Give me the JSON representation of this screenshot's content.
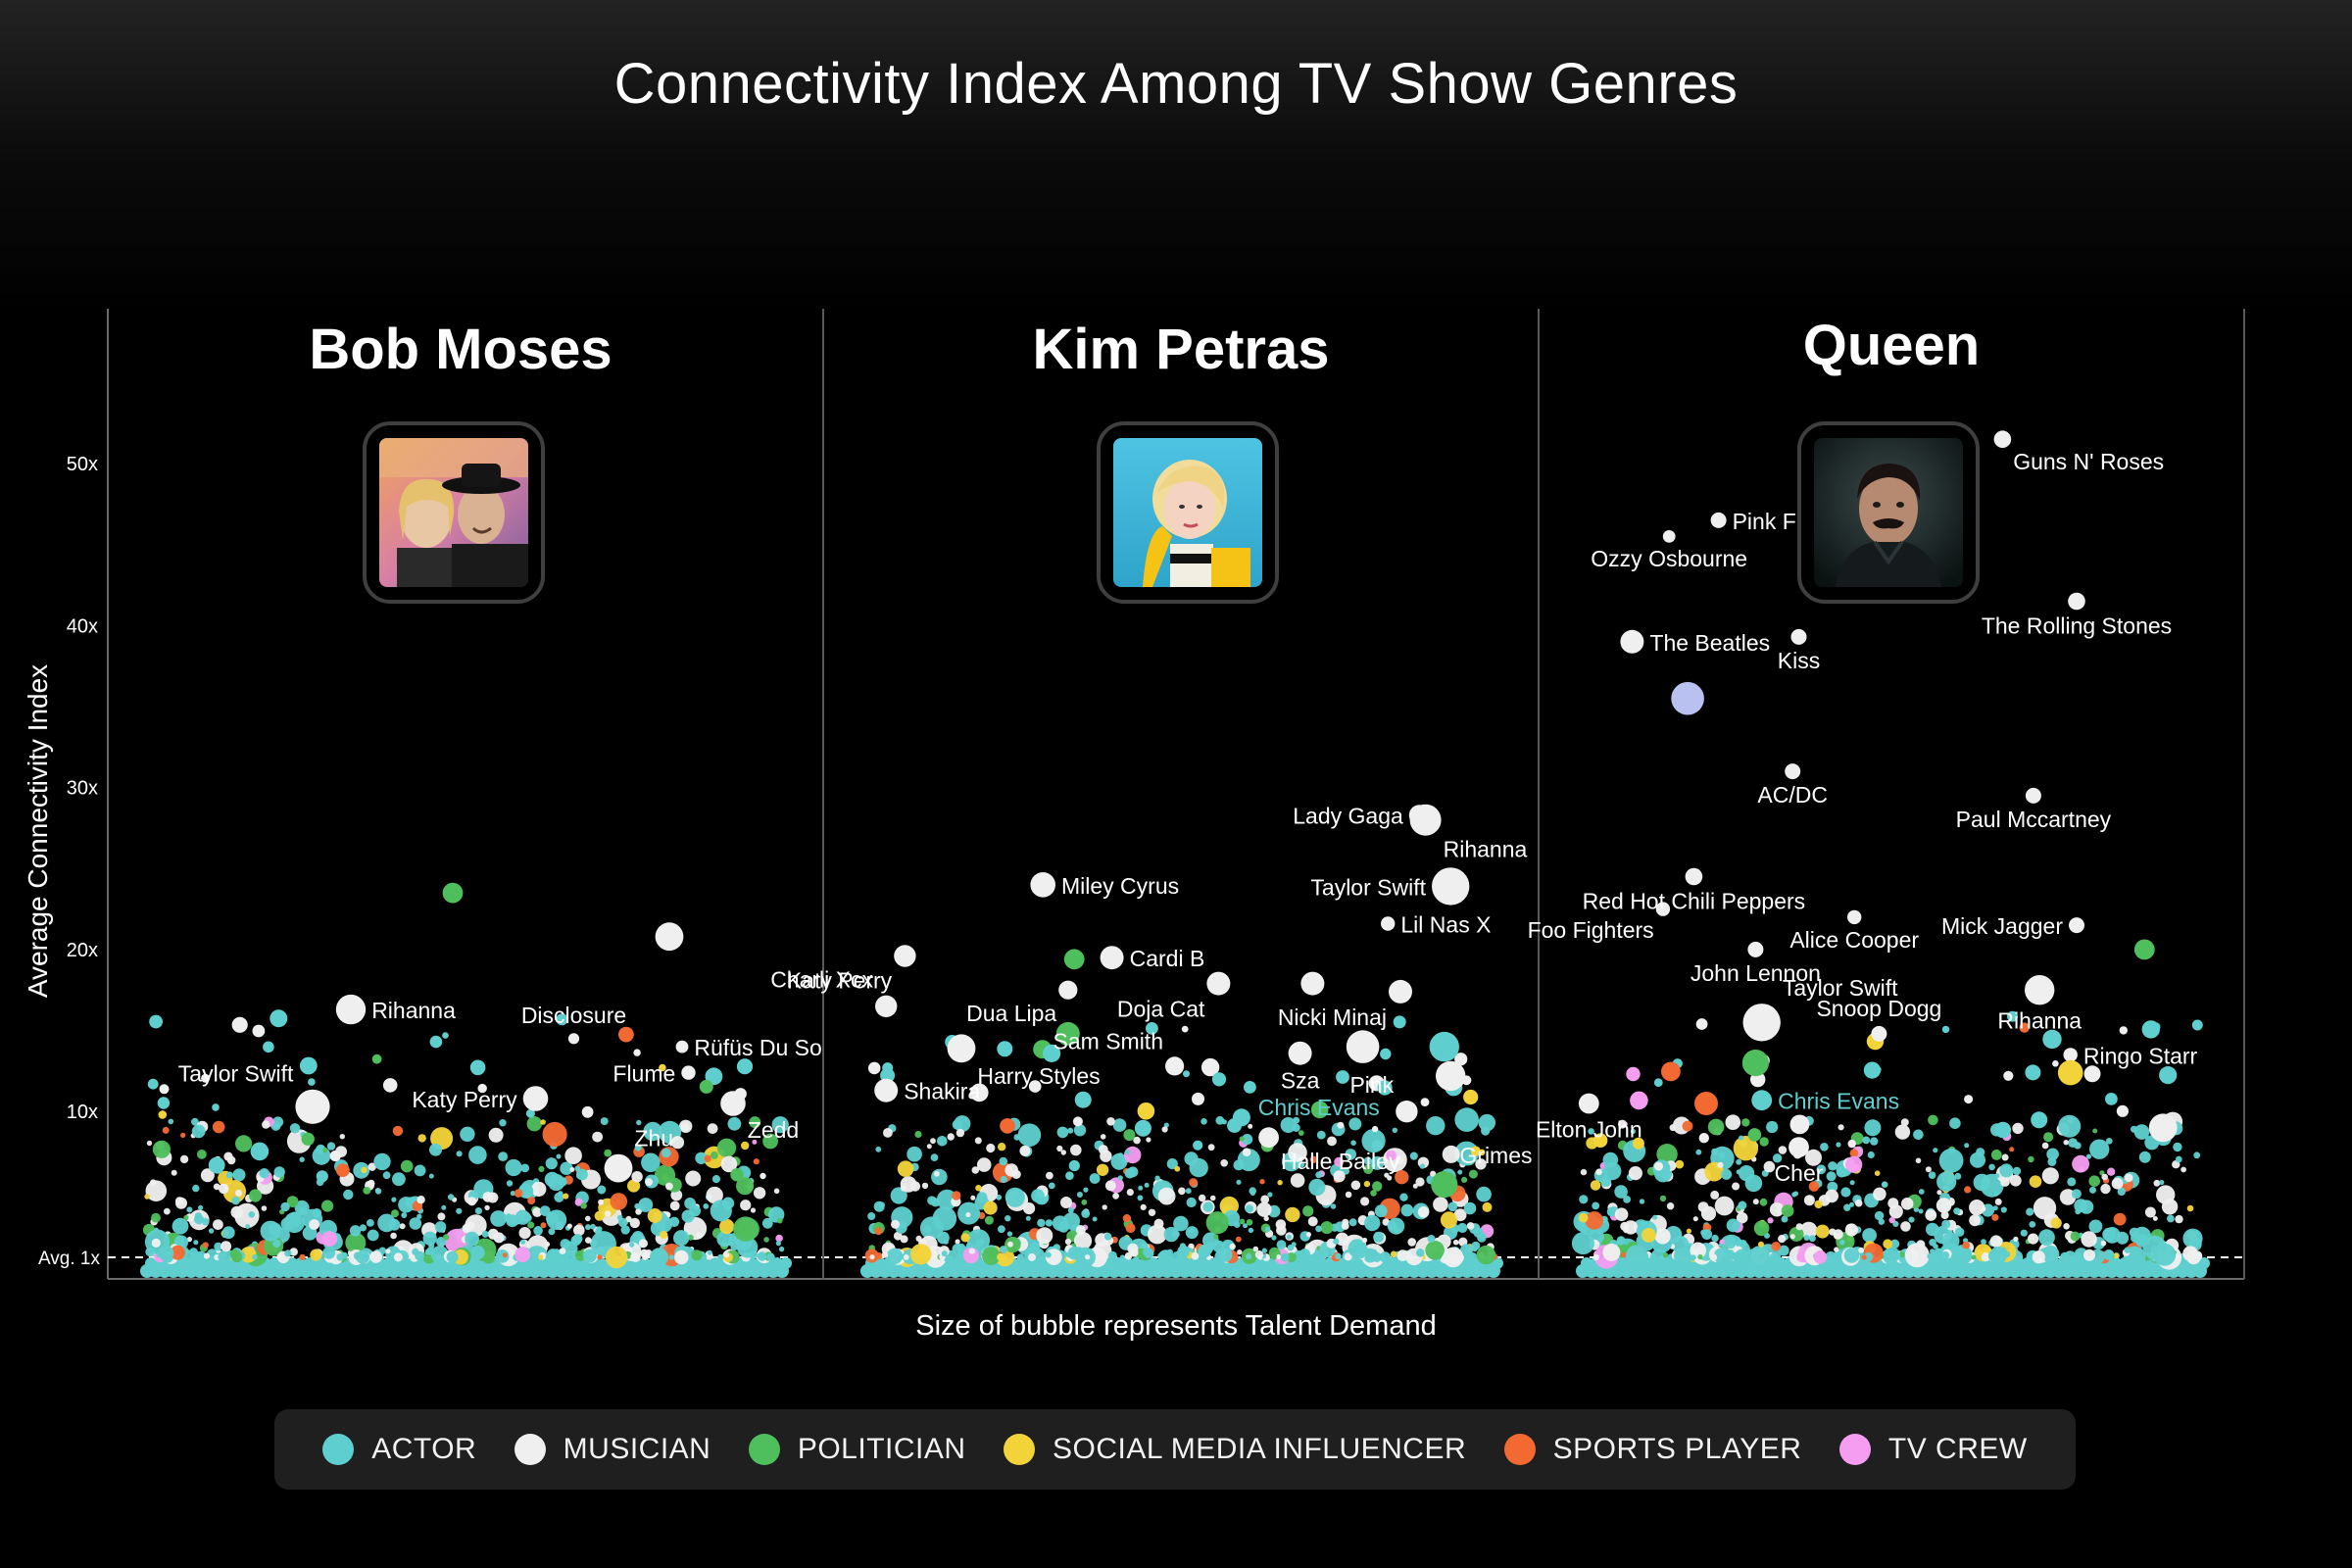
{
  "title": "Connectivity Index Among TV Show Genres",
  "legend": [
    {
      "label": "ACTOR",
      "color": "#5ecfce"
    },
    {
      "label": "MUSICIAN",
      "color": "#efefef"
    },
    {
      "label": "POLITICIAN",
      "color": "#4fbe5c"
    },
    {
      "label": "SOCIAL MEDIA INFLUENCER",
      "color": "#f3d33a"
    },
    {
      "label": "SPORTS PLAYER",
      "color": "#f26a32"
    },
    {
      "label": "TV CREW",
      "color": "#f59df0"
    }
  ],
  "chart_data": {
    "type": "scatter",
    "ylabel": "Average Connectivity Index",
    "xlabel": "Size of bubble represents Talent Demand",
    "y_ticks": [
      {
        "v": 10,
        "label": "10x"
      },
      {
        "v": 20,
        "label": "20x"
      },
      {
        "v": 30,
        "label": "30x"
      },
      {
        "v": 40,
        "label": "40x"
      },
      {
        "v": 50,
        "label": "50x"
      }
    ],
    "avg_line": {
      "v": 1,
      "label": "Avg. 1x"
    },
    "ylim": [
      0,
      56
    ],
    "panels": [
      {
        "name": "Bob Moses",
        "points": [
          {
            "label": "Rihanna",
            "x": 0.32,
            "y": 16.3,
            "t": "musician",
            "s": 1.4,
            "lpos": "r"
          },
          {
            "label": "Taylor Swift",
            "x": 0.26,
            "y": 10.3,
            "t": "musician",
            "s": 1.7,
            "lpos": "tl"
          },
          {
            "label": "Katy Perry",
            "x": 0.61,
            "y": 10.8,
            "t": "musician",
            "s": 1.1,
            "lpos": "l"
          },
          {
            "label": "Disclosure",
            "x": 0.67,
            "y": 14.5,
            "t": "musician",
            "s": 0.2,
            "lpos": "t"
          },
          {
            "label": "Flume",
            "x": 0.85,
            "y": 12.4,
            "t": "musician",
            "s": 0.4,
            "lpos": "l"
          },
          {
            "label": "Rüfüs Du So",
            "x": 0.84,
            "y": 14.0,
            "t": "musician",
            "s": 0.3,
            "lpos": "r"
          },
          {
            "label": "Zedd",
            "x": 0.92,
            "y": 10.5,
            "t": "musician",
            "s": 1.1,
            "lpos": "br"
          },
          {
            "label": "Zhu",
            "x": 0.74,
            "y": 6.5,
            "t": "musician",
            "s": 1.3,
            "lpos": "tr"
          },
          {
            "label": "",
            "x": 0.48,
            "y": 23.5,
            "t": "politician",
            "s": 0.8
          },
          {
            "label": "",
            "x": 0.82,
            "y": 20.8,
            "t": "musician",
            "s": 1.3
          }
        ]
      },
      {
        "name": "Kim Petras",
        "points": [
          {
            "label": "Lady Gaga",
            "x": 0.88,
            "y": 28.3,
            "t": "musician",
            "s": 0.8,
            "lpos": "l"
          },
          {
            "label": "Rihanna",
            "x": 0.89,
            "y": 28.0,
            "t": "musician",
            "s": 1.5,
            "lpos": "br"
          },
          {
            "label": "Taylor Swift",
            "x": 0.93,
            "y": 23.9,
            "t": "musician",
            "s": 1.9,
            "lpos": "l"
          },
          {
            "label": "Lil Nas X",
            "x": 0.83,
            "y": 21.6,
            "t": "musician",
            "s": 0.4,
            "lpos": "r"
          },
          {
            "label": "Miley Cyrus",
            "x": 0.28,
            "y": 24.0,
            "t": "musician",
            "s": 1.1,
            "lpos": "r"
          },
          {
            "label": "Katy Perry",
            "x": 0.06,
            "y": 19.6,
            "t": "musician",
            "s": 0.9,
            "lpos": "bl"
          },
          {
            "label": "Charli Xcx",
            "x": 0.03,
            "y": 16.5,
            "t": "musician",
            "s": 0.9,
            "lpos": "tl"
          },
          {
            "label": "Cardi B",
            "x": 0.39,
            "y": 19.5,
            "t": "musician",
            "s": 1.0,
            "lpos": "r"
          },
          {
            "label": "Dua Lipa",
            "x": 0.32,
            "y": 17.5,
            "t": "musician",
            "s": 0.7,
            "lpos": "bl"
          },
          {
            "label": "Doja Cat",
            "x": 0.56,
            "y": 17.9,
            "t": "musician",
            "s": 1.0,
            "lpos": "bl"
          },
          {
            "label": "Sam Smith",
            "x": 0.49,
            "y": 12.8,
            "t": "musician",
            "s": 0.7,
            "lpos": "tl"
          },
          {
            "label": "Harry Styles",
            "x": 0.15,
            "y": 13.9,
            "t": "musician",
            "s": 1.3,
            "lpos": "br"
          },
          {
            "label": "Shakira",
            "x": 0.03,
            "y": 11.3,
            "t": "musician",
            "s": 1.0,
            "lpos": "r"
          },
          {
            "label": "Chris Evans",
            "x": 0.61,
            "y": 11.5,
            "t": "actor",
            "s": 0.3,
            "lpos": "br",
            "lcolor": "#5ecfce"
          },
          {
            "label": "Sza",
            "x": 0.69,
            "y": 13.6,
            "t": "musician",
            "s": 1.0,
            "lpos": "b"
          },
          {
            "label": "Nicki Minaj",
            "x": 0.85,
            "y": 17.4,
            "t": "musician",
            "s": 1.0,
            "lpos": "bl"
          },
          {
            "label": "Pink",
            "x": 0.86,
            "y": 10.0,
            "t": "musician",
            "s": 0.9,
            "lpos": "tl"
          },
          {
            "label": "Halle Bailey",
            "x": 0.64,
            "y": 8.4,
            "t": "musician",
            "s": 0.8,
            "lpos": "br"
          },
          {
            "label": "Grimes",
            "x": 0.92,
            "y": 5.5,
            "t": "politician",
            "s": 1.2,
            "lpos": "tr"
          },
          {
            "label": "",
            "x": 0.79,
            "y": 14.0,
            "t": "musician",
            "s": 1.6
          },
          {
            "label": "",
            "x": 0.92,
            "y": 14.0,
            "t": "actor",
            "s": 1.4
          },
          {
            "label": "",
            "x": 0.71,
            "y": 17.9,
            "t": "musician",
            "s": 1.0
          },
          {
            "label": "",
            "x": 0.33,
            "y": 19.4,
            "t": "politician",
            "s": 0.8
          },
          {
            "label": "",
            "x": 0.32,
            "y": 14.8,
            "t": "politician",
            "s": 1.0
          },
          {
            "label": "",
            "x": 0.93,
            "y": 12.2,
            "t": "musician",
            "s": 1.4
          }
        ]
      },
      {
        "name": "Queen",
        "points": [
          {
            "label": "Guns N' Roses",
            "x": 0.68,
            "y": 51.5,
            "t": "musician",
            "s": 0.6,
            "lpos": "br"
          },
          {
            "label": "Pink Floyd",
            "x": 0.22,
            "y": 46.5,
            "t": "musician",
            "s": 0.5,
            "lpos": "r"
          },
          {
            "label": "Ozzy Osbourne",
            "x": 0.14,
            "y": 45.5,
            "t": "musician",
            "s": 0.3,
            "lpos": "b"
          },
          {
            "label": "The Beatles",
            "x": 0.08,
            "y": 39.0,
            "t": "musician",
            "s": 1.0,
            "lpos": "r"
          },
          {
            "label": "Kiss",
            "x": 0.35,
            "y": 39.3,
            "t": "musician",
            "s": 0.5,
            "lpos": "b"
          },
          {
            "label": "The Rolling Stones",
            "x": 0.8,
            "y": 41.5,
            "t": "musician",
            "s": 0.6,
            "lpos": "b"
          },
          {
            "label": "AC/DC",
            "x": 0.34,
            "y": 31.0,
            "t": "musician",
            "s": 0.5,
            "lpos": "b"
          },
          {
            "label": "Paul Mccartney",
            "x": 0.73,
            "y": 29.5,
            "t": "musician",
            "s": 0.5,
            "lpos": "b"
          },
          {
            "label": "Red Hot Chili Peppers",
            "x": 0.18,
            "y": 24.5,
            "t": "musician",
            "s": 0.6,
            "lpos": "b"
          },
          {
            "label": "Foo Fighters",
            "x": 0.13,
            "y": 22.5,
            "t": "musician",
            "s": 0.4,
            "lpos": "bl"
          },
          {
            "label": "Alice Cooper",
            "x": 0.44,
            "y": 22.0,
            "t": "musician",
            "s": 0.4,
            "lpos": "b"
          },
          {
            "label": "John Lennon",
            "x": 0.28,
            "y": 20.0,
            "t": "musician",
            "s": 0.5,
            "lpos": "b"
          },
          {
            "label": "Mick Jagger",
            "x": 0.8,
            "y": 21.5,
            "t": "musician",
            "s": 0.5,
            "lpos": "l"
          },
          {
            "label": "Taylor Swift",
            "x": 0.29,
            "y": 15.5,
            "t": "musician",
            "s": 1.9,
            "lpos": "tr"
          },
          {
            "label": "Rihanna",
            "x": 0.74,
            "y": 17.5,
            "t": "musician",
            "s": 1.4,
            "lpos": "b"
          },
          {
            "label": "Snoop Dogg",
            "x": 0.48,
            "y": 14.8,
            "t": "musician",
            "s": 0.5,
            "lpos": "t"
          },
          {
            "label": "Ringo Starr",
            "x": 0.79,
            "y": 13.5,
            "t": "musician",
            "s": 0.4,
            "lpos": "r"
          },
          {
            "label": "Elton John",
            "x": 0.01,
            "y": 10.5,
            "t": "musician",
            "s": 0.8,
            "lpos": "b"
          },
          {
            "label": "Chris Evans",
            "x": 0.29,
            "y": 10.7,
            "t": "actor",
            "s": 0.8,
            "lpos": "r",
            "lcolor": "#5ecfce"
          },
          {
            "label": "Cher",
            "x": 0.35,
            "y": 7.8,
            "t": "musician",
            "s": 0.8,
            "lpos": "b"
          },
          {
            "label": "",
            "x": 0.17,
            "y": 35.5,
            "t": "musician",
            "s": 1.6,
            "c": "#b9c1f0"
          },
          {
            "label": "",
            "x": 0.91,
            "y": 20.0,
            "t": "politician",
            "s": 0.8
          },
          {
            "label": "",
            "x": 0.94,
            "y": 9.0,
            "t": "musician",
            "s": 1.3
          },
          {
            "label": "",
            "x": 0.79,
            "y": 12.4,
            "t": "social",
            "s": 1.1
          },
          {
            "label": "",
            "x": 0.28,
            "y": 13.0,
            "t": "politician",
            "s": 1.2
          },
          {
            "label": "",
            "x": 0.2,
            "y": 10.5,
            "t": "sports",
            "s": 1.0
          }
        ]
      }
    ]
  },
  "photos": [
    {
      "panel": 0,
      "alt": "Bob Moses"
    },
    {
      "panel": 1,
      "alt": "Kim Petras"
    },
    {
      "panel": 2,
      "alt": "Queen"
    }
  ]
}
